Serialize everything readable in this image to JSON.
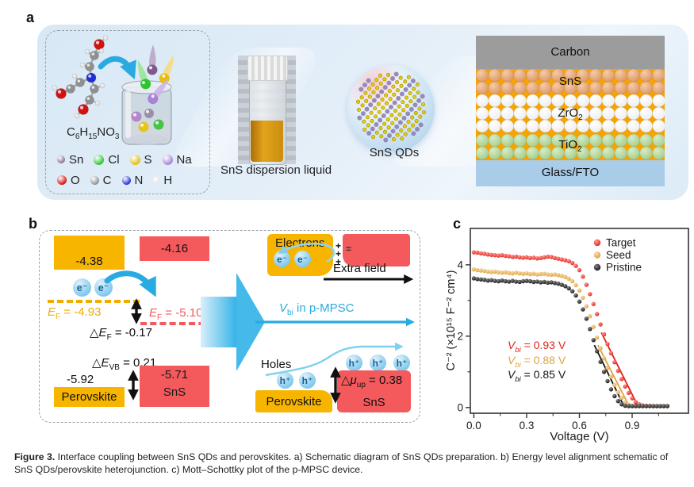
{
  "panel_a": {
    "label": "a",
    "formula": {
      "p1": "C",
      "s1": "6",
      "p2": "H",
      "s2": "15",
      "p3": "NO",
      "s3": "3"
    },
    "atom_legend": {
      "row1": [
        {
          "symbol": "Sn",
          "color": "#8d6e96",
          "size": 10
        },
        {
          "symbol": "Cl",
          "color": "#2ec52e",
          "size": 13
        },
        {
          "symbol": "S",
          "color": "#e3bd13",
          "size": 13
        },
        {
          "symbol": "Na",
          "color": "#a982d8",
          "size": 13
        }
      ],
      "row2": [
        {
          "symbol": "O",
          "color": "#d41111",
          "size": 12
        },
        {
          "symbol": "C",
          "color": "#909090",
          "size": 11
        },
        {
          "symbol": "N",
          "color": "#1f2fd4",
          "size": 11
        },
        {
          "symbol": "H",
          "color": "#e9e9e9",
          "size": 8
        }
      ]
    },
    "vial_label": "SnS dispersion liquid",
    "qd_label": "SnS QDs",
    "device": {
      "layers": [
        {
          "main": "Carbon",
          "sub": ""
        },
        {
          "main": "SnS",
          "sub": ""
        },
        {
          "main": "ZrO",
          "sub": "2"
        },
        {
          "main": "TiO",
          "sub": "2"
        },
        {
          "main": "Glass/FTO",
          "sub": ""
        }
      ],
      "sphere_colors": {
        "sns": "#dd9765",
        "sns_hi": "#f6cba6",
        "zro2": "#ededed",
        "zro2_hi": "#ffffff",
        "tio2": "#a4cd8b",
        "tio2_hi": "#d6ecc6"
      },
      "bg_color": "#f5a402",
      "carbon_color": "#9c9c9c",
      "glass_color": "#a9cce9"
    }
  },
  "panel_b": {
    "label": "b",
    "colors": {
      "yellow": "#f7b500",
      "salmon": "#f4595c",
      "cyan": "#29abe2"
    },
    "left": {
      "cb_perovskite": "-4.38",
      "cb_sns": "-4.16",
      "electron_symbol": "e⁻",
      "ef_perovskite": {
        "e": "E",
        "sub": "F",
        "value": " = -4.93"
      },
      "ef_sns": {
        "e": "E",
        "sub": "F",
        "value": " = -5.10"
      },
      "delta_ef": {
        "pre": "△",
        "e": "E",
        "sub": "F",
        "value": " = -0.17"
      },
      "delta_evb": {
        "pre": "△",
        "e": "E",
        "sub": "VB",
        "value": " = 0.21"
      },
      "vb_perovskite": "-5.92",
      "vb_sns": "-5.71",
      "perovskite_label": "Perovskite",
      "sns_label": "SnS"
    },
    "right": {
      "electrons_label": "Electrons",
      "electron_symbol": "e⁻",
      "plus_signs": "+",
      "minus_signs": "=",
      "extra_field_label": "Extra field",
      "vbi_label": {
        "v": "V",
        "sub": "bi",
        "rest": " in p-MPSC"
      },
      "holes_label": "Holes",
      "hole_symbol": "h⁺",
      "delta_mu": {
        "pre": "△",
        "mu": "μ",
        "sub": "up",
        "value": " = 0.38"
      },
      "perovskite_label": "Perovskite",
      "sns_label": "SnS"
    }
  },
  "panel_c_label": "c",
  "chart_data": {
    "type": "scatter",
    "xlabel": "Voltage (V)",
    "ylabel": "C⁻² (×10¹⁵ F⁻² cm⁴)",
    "xlim": [
      -0.02,
      1.22
    ],
    "ylim": [
      -0.16,
      5.02
    ],
    "xticks": [
      0.0,
      0.3,
      0.6,
      0.9
    ],
    "xtick_labels": [
      "0.0",
      "0.3",
      "0.6",
      "0.9"
    ],
    "xminor": [
      0.15,
      0.45,
      0.75,
      1.05
    ],
    "yticks": [
      0,
      2,
      4
    ],
    "ytick_labels": [
      "0",
      "2",
      "4"
    ],
    "yminor": [
      1,
      3
    ],
    "legend_position": "upper right",
    "legend": [
      {
        "name": "Target",
        "color": "#e2231a",
        "highlight": "#ff9d96"
      },
      {
        "name": "Seed",
        "color": "#dfa33c",
        "highlight": "#f6dcab"
      },
      {
        "name": "Pristine",
        "color": "#141414",
        "highlight": "#8a8a8a"
      }
    ],
    "annotations": [
      {
        "v": "V",
        "sub": "bi",
        "rest": " = 0.93 V",
        "color": "#e2231a"
      },
      {
        "v": "V",
        "sub": "bi",
        "rest": " = 0.88 V",
        "color": "#dfa33c"
      },
      {
        "v": "V",
        "sub": "bi",
        "rest": " = 0.85 V",
        "color": "#141414"
      }
    ],
    "x": [
      0.0,
      0.02,
      0.04,
      0.06,
      0.08,
      0.1,
      0.12,
      0.14,
      0.16,
      0.18,
      0.2,
      0.22,
      0.24,
      0.26,
      0.28,
      0.3,
      0.32,
      0.34,
      0.36,
      0.38,
      0.4,
      0.42,
      0.44,
      0.46,
      0.48,
      0.5,
      0.52,
      0.54,
      0.56,
      0.58,
      0.6,
      0.62,
      0.64,
      0.66,
      0.68,
      0.7,
      0.72,
      0.74,
      0.76,
      0.78,
      0.8,
      0.82,
      0.84,
      0.86,
      0.88,
      0.9,
      0.92,
      0.94,
      0.96,
      0.98,
      1.0,
      1.02,
      1.04,
      1.06,
      1.08,
      1.1
    ],
    "series": [
      {
        "name": "Target",
        "color": "#e2231a",
        "highlight": "#ff9d96",
        "y": [
          4.35,
          4.34,
          4.32,
          4.31,
          4.29,
          4.28,
          4.27,
          4.26,
          4.27,
          4.25,
          4.24,
          4.22,
          4.23,
          4.21,
          4.2,
          4.21,
          4.19,
          4.2,
          4.18,
          4.19,
          4.21,
          4.23,
          4.22,
          4.19,
          4.17,
          4.15,
          4.13,
          4.1,
          4.05,
          3.97,
          3.85,
          3.67,
          3.44,
          3.18,
          2.9,
          2.62,
          2.33,
          2.05,
          1.78,
          1.52,
          1.27,
          1.03,
          0.8,
          0.59,
          0.41,
          0.26,
          0.15,
          0.09,
          0.06,
          0.05,
          0.05,
          0.04,
          0.04,
          0.04,
          0.04,
          0.04
        ]
      },
      {
        "name": "Seed",
        "color": "#dfa33c",
        "highlight": "#f6dcab",
        "y": [
          3.87,
          3.85,
          3.84,
          3.83,
          3.81,
          3.8,
          3.81,
          3.79,
          3.78,
          3.79,
          3.77,
          3.76,
          3.78,
          3.76,
          3.75,
          3.76,
          3.74,
          3.75,
          3.73,
          3.74,
          3.75,
          3.73,
          3.72,
          3.73,
          3.71,
          3.69,
          3.66,
          3.61,
          3.54,
          3.43,
          3.28,
          3.08,
          2.84,
          2.56,
          2.26,
          1.96,
          1.66,
          1.38,
          1.11,
          0.86,
          0.63,
          0.43,
          0.27,
          0.15,
          0.08,
          0.05,
          0.04,
          0.04,
          0.04,
          0.04,
          0.04,
          0.04,
          0.04,
          0.04,
          0.04,
          0.04
        ]
      },
      {
        "name": "Pristine",
        "color": "#141414",
        "highlight": "#8a8a8a",
        "y": [
          3.62,
          3.6,
          3.59,
          3.58,
          3.56,
          3.57,
          3.55,
          3.54,
          3.56,
          3.54,
          3.53,
          3.55,
          3.53,
          3.52,
          3.54,
          3.55,
          3.54,
          3.52,
          3.53,
          3.51,
          3.52,
          3.5,
          3.51,
          3.49,
          3.47,
          3.44,
          3.4,
          3.34,
          3.26,
          3.14,
          2.97,
          2.75,
          2.49,
          2.2,
          1.89,
          1.58,
          1.28,
          1.0,
          0.74,
          0.51,
          0.32,
          0.18,
          0.09,
          0.05,
          0.04,
          0.04,
          0.04,
          0.04,
          0.04,
          0.04,
          0.04,
          0.04,
          0.04,
          0.04,
          0.04,
          0.04
        ]
      }
    ],
    "fit_lines": [
      {
        "color": "#e2231a",
        "x1": 0.725,
        "y1": 2.1,
        "x2": 0.935,
        "y2": 0.02
      },
      {
        "color": "#dfa33c",
        "x1": 0.705,
        "y1": 1.75,
        "x2": 0.885,
        "y2": 0.02
      },
      {
        "color": "#141414",
        "x1": 0.685,
        "y1": 1.75,
        "x2": 0.855,
        "y2": 0.02
      }
    ]
  },
  "caption": {
    "label": "Figure 3.",
    "text": " Interface coupling between SnS QDs and perovskites. a) Schematic diagram of SnS QDs preparation. b) Energy level alignment schematic of SnS QDs/perovskite heterojunction. c) Mott–Schottky plot of the p-MPSC device."
  }
}
